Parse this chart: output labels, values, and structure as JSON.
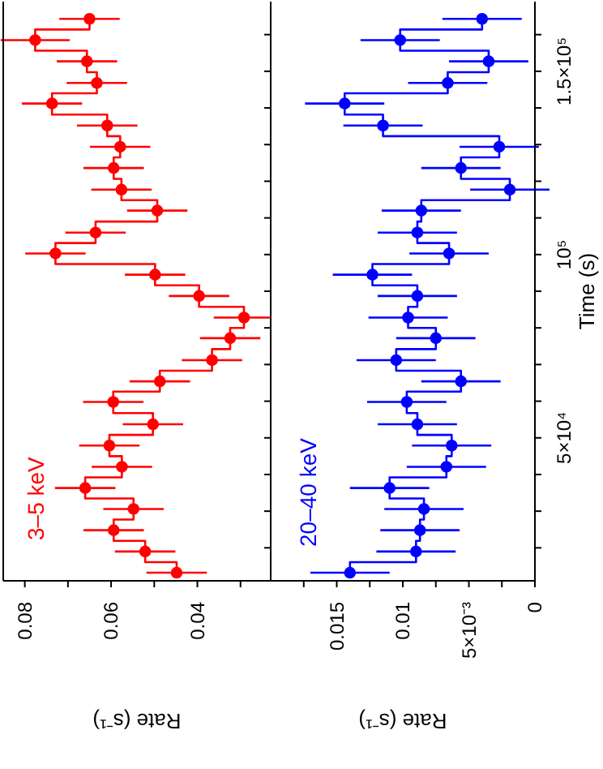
{
  "chart_data": [
    {
      "type": "step",
      "orientation": "horizontal",
      "xlabel": "Rate (s⁻¹)",
      "tick_labels": "x",
      "marker": "circle",
      "x": [
        164300,
        158500,
        152700,
        146800,
        141200,
        135200,
        129400,
        123600,
        117700,
        112000,
        106000,
        100300,
        94500,
        88700,
        82800,
        77200,
        71200,
        65400,
        59800,
        53700,
        47900,
        42100,
        36300,
        30600,
        24800,
        19000,
        13200
      ],
      "series": [
        {
          "name": "3–5 keV",
          "color": "#ff0000",
          "values": [
            0.065,
            0.0776,
            0.0656,
            0.0633,
            0.0737,
            0.0609,
            0.0579,
            0.0594,
            0.0576,
            0.0493,
            0.0636,
            0.0729,
            0.0498,
            0.0396,
            0.0292,
            0.0324,
            0.0366,
            0.0487,
            0.0595,
            0.0503,
            0.0604,
            0.0575,
            0.066,
            0.0548,
            0.0594,
            0.0521,
            0.0448
          ],
          "errors": [
            0.007,
            0.008,
            0.007,
            0.007,
            0.007,
            0.007,
            0.007,
            0.007,
            0.007,
            0.007,
            0.007,
            0.007,
            0.007,
            0.007,
            0.007,
            0.007,
            0.007,
            0.007,
            0.007,
            0.007,
            0.007,
            0.007,
            0.007,
            0.007,
            0.007,
            0.007,
            0.007
          ]
        }
      ],
      "ylim": [
        11000,
        169000
      ],
      "yticks": [
        {
          "value": 20000,
          "label": null
        },
        {
          "value": 30000,
          "label": null
        },
        {
          "value": 40000,
          "label": null
        },
        {
          "value": 50000,
          "label": null
        },
        {
          "value": 60000,
          "label": null
        },
        {
          "value": 70000,
          "label": null
        },
        {
          "value": 80000,
          "label": null
        },
        {
          "value": 90000,
          "label": null
        },
        {
          "value": 100000,
          "label": null
        },
        {
          "value": 110000,
          "label": null
        },
        {
          "value": 120000,
          "label": null
        },
        {
          "value": 130000,
          "label": null
        },
        {
          "value": 140000,
          "label": null
        },
        {
          "value": 150000,
          "label": null
        },
        {
          "value": 160000,
          "label": null
        }
      ],
      "xlim": [
        0.085,
        0.023
      ],
      "xticks": [
        {
          "value": 0.03,
          "label": null
        },
        0.04,
        {
          "value": 0.05,
          "label": null
        },
        0.06,
        {
          "value": 0.07,
          "label": null
        },
        0.08
      ]
    },
    {
      "type": "step",
      "orientation": "horizontal",
      "xlabel": "Rate (s⁻¹)",
      "ylabel": "Time (s)",
      "marker": "circle",
      "x": [
        164300,
        158500,
        152700,
        146800,
        141200,
        135200,
        129400,
        123600,
        117700,
        112000,
        106000,
        100300,
        94500,
        88700,
        82800,
        77200,
        71200,
        65400,
        59800,
        53700,
        47900,
        42100,
        36300,
        30600,
        24800,
        19000,
        13200
      ],
      "series": [
        {
          "name": "20–40 keV",
          "color": "#0000ff",
          "values": [
            0.004,
            0.0102,
            0.0035,
            0.0066,
            0.0144,
            0.0115,
            0.0027,
            0.0056,
            0.0019,
            0.0086,
            0.0089,
            0.0065,
            0.0123,
            0.0089,
            0.0096,
            0.0075,
            0.0105,
            0.0056,
            0.0097,
            0.0089,
            0.0063,
            0.0067,
            0.011,
            0.0084,
            0.0087,
            0.009,
            0.014
          ],
          "errors": [
            0.003,
            0.003,
            0.003,
            0.003,
            0.003,
            0.003,
            0.003,
            0.003,
            0.003,
            0.003,
            0.003,
            0.003,
            0.003,
            0.003,
            0.003,
            0.003,
            0.003,
            0.003,
            0.003,
            0.003,
            0.003,
            0.003,
            0.003,
            0.003,
            0.003,
            0.003,
            0.003
          ]
        }
      ],
      "ylim": [
        11000,
        169000
      ],
      "yticks": [
        {
          "value": 20000,
          "label": null
        },
        {
          "value": 30000,
          "label": null
        },
        {
          "value": 40000,
          "label": null
        },
        {
          "value": 50000,
          "label": "5×10⁴"
        },
        {
          "value": 60000,
          "label": null
        },
        {
          "value": 70000,
          "label": null
        },
        {
          "value": 80000,
          "label": null
        },
        {
          "value": 90000,
          "label": null
        },
        {
          "value": 100000,
          "label": "10⁵"
        },
        {
          "value": 110000,
          "label": null
        },
        {
          "value": 120000,
          "label": null
        },
        {
          "value": 130000,
          "label": null
        },
        {
          "value": 140000,
          "label": null
        },
        {
          "value": 150000,
          "label": "1.5×10⁵"
        },
        {
          "value": 160000,
          "label": null
        }
      ],
      "xlim": [
        0.02,
        0
      ],
      "xticks": [
        0,
        {
          "value": 0.0025,
          "label": null
        },
        {
          "value": 0.005,
          "label": "5×10⁻³"
        },
        {
          "value": 0.0075,
          "label": null
        },
        0.01,
        {
          "value": 0.0125,
          "label": null
        },
        0.015,
        {
          "value": 0.0175,
          "label": null
        }
      ]
    }
  ]
}
